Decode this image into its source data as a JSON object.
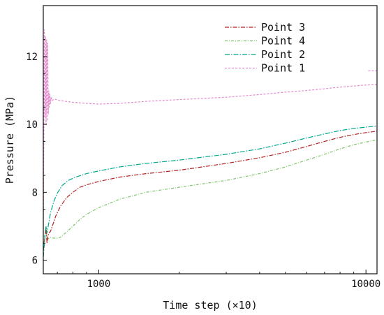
{
  "chart_data": {
    "type": "line",
    "xlabel": "Time step (×10)",
    "ylabel": "Pressure (MPa)",
    "x_scale": "log",
    "xlim": [
      620,
      11000
    ],
    "ylim": [
      5.6,
      13.5
    ],
    "x_ticks": [
      1000,
      10000
    ],
    "y_ticks": [
      6,
      8,
      10,
      12
    ],
    "grid": false,
    "legend_position": "top-right",
    "series": [
      {
        "name": "Point 3",
        "color": "#b22222",
        "dash": "6,2,1.5,2",
        "points": [
          [
            620,
            6.3
          ],
          [
            625,
            6.5
          ],
          [
            630,
            6.75
          ],
          [
            635,
            6.95
          ],
          [
            640,
            6.5
          ],
          [
            645,
            6.7
          ],
          [
            650,
            6.8
          ],
          [
            660,
            6.85
          ],
          [
            670,
            7.0
          ],
          [
            690,
            7.3
          ],
          [
            720,
            7.6
          ],
          [
            760,
            7.85
          ],
          [
            800,
            8.0
          ],
          [
            850,
            8.15
          ],
          [
            900,
            8.22
          ],
          [
            1000,
            8.32
          ],
          [
            1200,
            8.45
          ],
          [
            1500,
            8.55
          ],
          [
            2000,
            8.65
          ],
          [
            3000,
            8.85
          ],
          [
            4000,
            9.02
          ],
          [
            5000,
            9.18
          ],
          [
            6000,
            9.35
          ],
          [
            7000,
            9.5
          ],
          [
            8000,
            9.62
          ],
          [
            9000,
            9.7
          ],
          [
            10000,
            9.76
          ],
          [
            11000,
            9.8
          ]
        ]
      },
      {
        "name": "Point 4",
        "color": "#7cc46a",
        "dash": "4,2,1,2",
        "points": [
          [
            620,
            6.3
          ],
          [
            625,
            6.6
          ],
          [
            630,
            6.85
          ],
          [
            635,
            7.0
          ],
          [
            640,
            6.6
          ],
          [
            650,
            6.65
          ],
          [
            660,
            6.67
          ],
          [
            680,
            6.65
          ],
          [
            700,
            6.65
          ],
          [
            720,
            6.68
          ],
          [
            750,
            6.8
          ],
          [
            800,
            7.0
          ],
          [
            850,
            7.2
          ],
          [
            900,
            7.35
          ],
          [
            1000,
            7.55
          ],
          [
            1200,
            7.8
          ],
          [
            1500,
            8.0
          ],
          [
            2000,
            8.15
          ],
          [
            3000,
            8.35
          ],
          [
            4000,
            8.55
          ],
          [
            5000,
            8.75
          ],
          [
            6000,
            8.95
          ],
          [
            7000,
            9.12
          ],
          [
            8000,
            9.28
          ],
          [
            9000,
            9.4
          ],
          [
            10000,
            9.48
          ],
          [
            11000,
            9.55
          ]
        ]
      },
      {
        "name": "Point 2",
        "color": "#00a88e",
        "dash": "7,2,1.5,2",
        "points": [
          [
            620,
            6.1
          ],
          [
            625,
            6.4
          ],
          [
            630,
            6.8
          ],
          [
            635,
            7.0
          ],
          [
            640,
            6.8
          ],
          [
            650,
            7.1
          ],
          [
            660,
            7.4
          ],
          [
            680,
            7.75
          ],
          [
            700,
            7.98
          ],
          [
            730,
            8.2
          ],
          [
            770,
            8.35
          ],
          [
            820,
            8.45
          ],
          [
            900,
            8.55
          ],
          [
            1000,
            8.63
          ],
          [
            1200,
            8.75
          ],
          [
            1500,
            8.85
          ],
          [
            2000,
            8.95
          ],
          [
            3000,
            9.12
          ],
          [
            4000,
            9.28
          ],
          [
            5000,
            9.45
          ],
          [
            6000,
            9.6
          ],
          [
            7000,
            9.72
          ],
          [
            8000,
            9.82
          ],
          [
            9000,
            9.88
          ],
          [
            10000,
            9.92
          ],
          [
            11000,
            9.95
          ]
        ]
      },
      {
        "name": "Point 1",
        "color": "#e58ccf",
        "dash": "3,2",
        "points": [
          [
            620,
            6.5
          ],
          [
            623,
            9.5
          ],
          [
            626,
            12.8
          ],
          [
            629,
            10.2
          ],
          [
            632,
            12.6
          ],
          [
            635,
            10.0
          ],
          [
            638,
            12.5
          ],
          [
            641,
            10.1
          ],
          [
            644,
            12.4
          ],
          [
            647,
            10.3
          ],
          [
            650,
            11.0
          ],
          [
            653,
            10.5
          ],
          [
            656,
            10.9
          ],
          [
            659,
            10.6
          ],
          [
            663,
            10.8
          ],
          [
            668,
            10.7
          ],
          [
            680,
            10.75
          ],
          [
            720,
            10.7
          ],
          [
            800,
            10.65
          ],
          [
            900,
            10.62
          ],
          [
            1000,
            10.6
          ],
          [
            1200,
            10.62
          ],
          [
            1500,
            10.68
          ],
          [
            2000,
            10.73
          ],
          [
            3000,
            10.8
          ],
          [
            4000,
            10.88
          ],
          [
            5000,
            10.95
          ],
          [
            6000,
            11.0
          ],
          [
            7000,
            11.05
          ],
          [
            8000,
            11.1
          ],
          [
            9000,
            11.13
          ],
          [
            10000,
            11.16
          ],
          [
            11000,
            11.18
          ]
        ]
      }
    ],
    "legend": [
      "Point 3",
      "Point 4",
      "Point 2",
      "Point 1"
    ],
    "stray_segment": {
      "color": "#e58ccf",
      "points": [
        [
          10200,
          11.58
        ],
        [
          11000,
          11.58
        ]
      ]
    }
  }
}
